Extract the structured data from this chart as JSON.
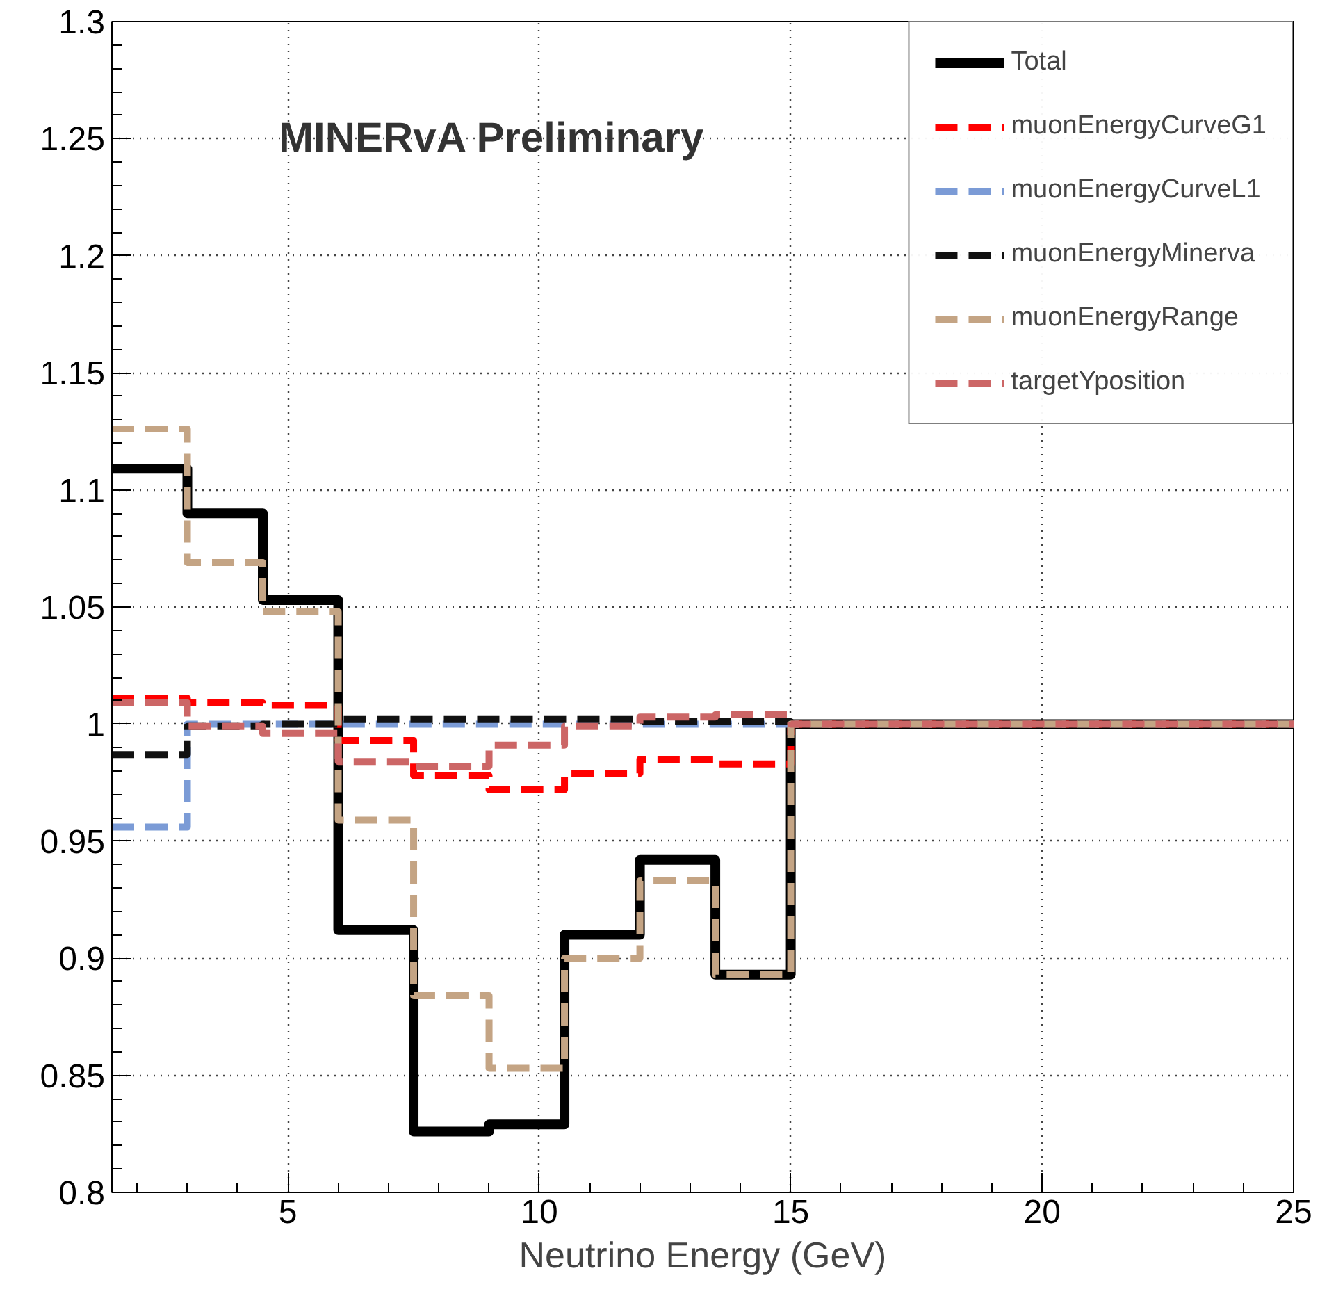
{
  "chart_data": {
    "type": "histogram",
    "xlabel": "Neutrino Energy (GeV)",
    "annotations": [
      "MINERvA Preliminary"
    ],
    "bins": [
      1.5,
      3,
      4.5,
      6,
      7.5,
      9,
      10.5,
      12,
      13.5,
      15,
      25
    ],
    "series": [
      {
        "name": "Total",
        "color": "#000000",
        "line_style": "solid",
        "values": [
          1.109,
          1.09,
          1.053,
          0.912,
          0.826,
          0.829,
          0.91,
          0.942,
          0.893,
          1
        ]
      },
      {
        "name": "muonEnergyCurveG1",
        "color": "#ff0000",
        "line_style": "dashed",
        "values": [
          1.011,
          1.009,
          1.008,
          0.993,
          0.978,
          0.972,
          0.979,
          0.985,
          0.983,
          1
        ]
      },
      {
        "name": "muonEnergyCurveL1",
        "color": "#7b9bd6",
        "line_style": "dashed",
        "values": [
          0.956,
          1,
          1,
          1,
          1,
          1,
          1,
          1,
          1,
          1
        ]
      },
      {
        "name": "muonEnergyMinerva",
        "color": "#111111",
        "line_style": "dashed",
        "values": [
          0.987,
          0.999,
          1,
          1.002,
          1.002,
          1.002,
          1.002,
          1.001,
          1.001,
          1
        ]
      },
      {
        "name": "muonEnergyRange",
        "color": "#c4a484",
        "line_style": "dashed",
        "values": [
          1.126,
          1.069,
          1.048,
          0.959,
          0.884,
          0.853,
          0.9,
          0.933,
          0.893,
          1
        ]
      },
      {
        "name": "targetYposition",
        "color": "#cc6666",
        "line_style": "dashed",
        "values": [
          1.009,
          0.999,
          0.996,
          0.984,
          0.982,
          0.991,
          0.999,
          1.003,
          1.004,
          1
        ]
      }
    ],
    "xlim": [
      1.5,
      25
    ],
    "ylim": [
      0.8,
      1.3
    ],
    "xticks": [
      5,
      10,
      15,
      20,
      25
    ],
    "yticks": [
      0.8,
      0.85,
      0.9,
      0.95,
      1,
      1.05,
      1.1,
      1.15,
      1.2,
      1.25,
      1.3
    ],
    "grid": true,
    "legend": "top right"
  }
}
